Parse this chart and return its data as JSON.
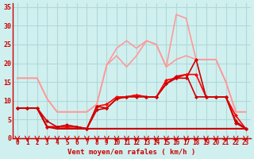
{
  "bg_color": "#d0f0f0",
  "grid_color": "#b0d8d8",
  "x": [
    0,
    1,
    2,
    3,
    4,
    5,
    6,
    7,
    8,
    9,
    10,
    11,
    12,
    13,
    14,
    15,
    16,
    17,
    18,
    19,
    20,
    21,
    22,
    23
  ],
  "series": [
    {
      "color": "#ff9999",
      "linewidth": 1.2,
      "y": [
        16,
        16,
        16,
        10.5,
        7,
        7,
        7,
        7,
        9,
        19.5,
        22,
        19,
        22,
        26,
        25,
        19,
        21,
        22,
        21,
        21,
        21,
        15,
        7,
        7
      ]
    },
    {
      "color": "#ff9999",
      "linewidth": 1.2,
      "y": [
        16,
        16,
        16,
        10.5,
        7,
        7,
        7,
        7,
        9,
        19.5,
        24,
        26,
        24,
        26,
        25,
        19,
        33,
        32,
        21,
        21,
        21,
        15,
        7,
        7
      ]
    },
    {
      "color": "#cc0000",
      "linewidth": 1.2,
      "marker": "D",
      "markersize": 2.5,
      "y": [
        8,
        8,
        8,
        3,
        3,
        3,
        3,
        2.5,
        7.5,
        8,
        10.5,
        11,
        11.5,
        11,
        11,
        14.5,
        16.5,
        17,
        11,
        11,
        11,
        11,
        4,
        2.5
      ]
    },
    {
      "color": "#ff0000",
      "linewidth": 1.2,
      "marker": "D",
      "markersize": 2.5,
      "y": [
        8,
        8,
        8,
        3,
        3,
        3,
        3,
        2.5,
        8.5,
        9,
        11,
        11,
        11.5,
        11,
        11,
        15.5,
        16,
        17,
        17,
        11,
        11,
        11,
        6,
        2.5
      ]
    },
    {
      "color": "#cc0000",
      "linewidth": 1.2,
      "marker": "D",
      "markersize": 2.5,
      "y": [
        8,
        8,
        8,
        4.5,
        3,
        3.5,
        3,
        2.5,
        8.5,
        8,
        10.5,
        11,
        11,
        11,
        11,
        14.5,
        16,
        16,
        21,
        11,
        11,
        11,
        4.5,
        2.5
      ]
    },
    {
      "color": "#cc0000",
      "linewidth": 1.5,
      "y": [
        8,
        8,
        8,
        3,
        2.5,
        2.5,
        2.5,
        2.5,
        2.5,
        2.5,
        2.5,
        2.5,
        2.5,
        2.5,
        2.5,
        2.5,
        2.5,
        2.5,
        2.5,
        2.5,
        2.5,
        2.5,
        2.5,
        2.5
      ]
    }
  ],
  "ylim": [
    0,
    36
  ],
  "yticks": [
    0,
    5,
    10,
    15,
    20,
    25,
    30,
    35
  ],
  "ytick_labels": [
    "0",
    "5",
    "10",
    "15",
    "20",
    "25",
    "30",
    "35"
  ],
  "xtick_labels": [
    "0",
    "1",
    "2",
    "3",
    "4",
    "5",
    "6",
    "7",
    "8",
    "9",
    "10",
    "11",
    "12",
    "13",
    "14",
    "15",
    "16",
    "17",
    "18",
    "19",
    "20",
    "21",
    "22",
    "23"
  ],
  "xlabel": "Vent moyen/en rafales ( km/h )",
  "xlabel_color": "#cc0000",
  "tick_color": "#cc0000",
  "arrow_color": "#cc0000"
}
